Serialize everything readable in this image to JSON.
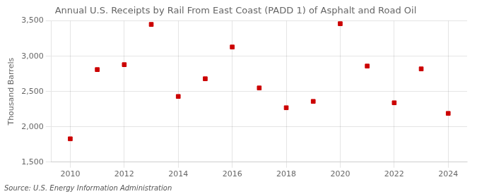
{
  "chart_data": {
    "type": "scatter",
    "title": "Annual U.S. Receipts by Rail From East Coast (PADD 1) of Asphalt and Road Oil",
    "ylabel": "Thousand Barrels",
    "annotations": [
      "Source: U.S. Energy Information Administration"
    ],
    "x": [
      2010,
      2011,
      2012,
      2013,
      2014,
      2015,
      2016,
      2017,
      2018,
      2019,
      2020,
      2021,
      2022,
      2023,
      2024
    ],
    "values": [
      1830,
      2810,
      2880,
      3450,
      2430,
      2680,
      3130,
      2550,
      2270,
      2360,
      3460,
      2860,
      2340,
      2820,
      2190
    ],
    "color": "#cc0000",
    "marker": "square",
    "xlim": [
      2009.3,
      2024.7
    ],
    "xticks": [
      2010,
      2012,
      2014,
      2016,
      2018,
      2020,
      2022,
      2024
    ],
    "ylim": [
      1500,
      3500
    ],
    "yticks": [
      {
        "value": 1500,
        "label": "1,500"
      },
      {
        "value": 2000,
        "label": "2,000"
      },
      {
        "value": 2500,
        "label": "2,500"
      },
      {
        "value": 3000,
        "label": "3,000"
      },
      {
        "value": 3500,
        "label": "3,500"
      }
    ],
    "grid": true
  }
}
